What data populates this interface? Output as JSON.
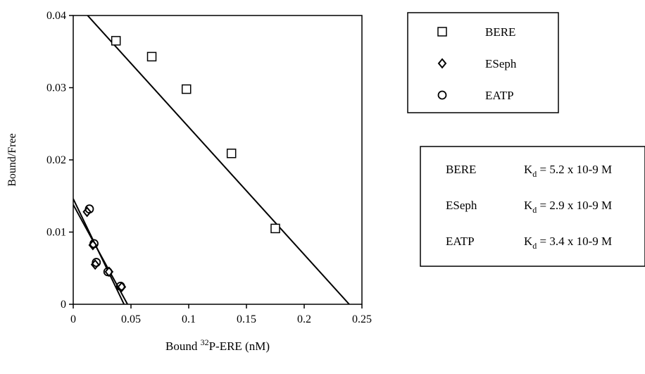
{
  "chart_data": {
    "type": "scatter",
    "xlabel_main": "Bound ",
    "xlabel_sup": "32",
    "xlabel_rest": "P-ERE (nM)",
    "ylabel": "Bound/Free",
    "xlim": [
      0,
      0.25
    ],
    "ylim": [
      0,
      0.04
    ],
    "x_ticks": [
      "0",
      "0.05",
      "0.1",
      "0.15",
      "0.2",
      "0.25"
    ],
    "y_ticks": [
      "0",
      "0.01",
      "0.02",
      "0.03",
      "0.04"
    ],
    "grid": false,
    "series": [
      {
        "name": "BERE",
        "marker": "square",
        "points": [
          {
            "x": 0.037,
            "y": 0.0365
          },
          {
            "x": 0.068,
            "y": 0.0343
          },
          {
            "x": 0.098,
            "y": 0.0298
          },
          {
            "x": 0.137,
            "y": 0.0209
          },
          {
            "x": 0.175,
            "y": 0.0105
          }
        ],
        "fit": {
          "x0": 0.0,
          "y0": 0.0422,
          "x1": 0.239,
          "y1": 0.0
        }
      },
      {
        "name": "ESeph",
        "marker": "diamond",
        "points": [
          {
            "x": 0.012,
            "y": 0.0128
          },
          {
            "x": 0.017,
            "y": 0.0082
          },
          {
            "x": 0.019,
            "y": 0.0055
          },
          {
            "x": 0.031,
            "y": 0.0045
          },
          {
            "x": 0.042,
            "y": 0.0024
          }
        ],
        "fit": {
          "x0": 0.0,
          "y0": 0.0138,
          "x1": 0.047,
          "y1": 0.0
        }
      },
      {
        "name": "EATP",
        "marker": "circle",
        "points": [
          {
            "x": 0.014,
            "y": 0.0132
          },
          {
            "x": 0.018,
            "y": 0.0084
          },
          {
            "x": 0.02,
            "y": 0.0058
          },
          {
            "x": 0.03,
            "y": 0.0045
          },
          {
            "x": 0.041,
            "y": 0.0025
          }
        ],
        "fit": {
          "x0": 0.0,
          "y0": 0.0146,
          "x1": 0.044,
          "y1": 0.0
        }
      }
    ],
    "legend_position": "top-right",
    "kd_table": [
      {
        "name": "BERE",
        "k": "K",
        "sub": "d",
        "value": " = 5.2 x 10-9 M"
      },
      {
        "name": "ESeph",
        "k": "K",
        "sub": "d",
        "value": " = 2.9 x 10-9 M"
      },
      {
        "name": "EATP",
        "k": "K",
        "sub": "d",
        "value": " = 3.4 x 10-9 M"
      }
    ]
  }
}
